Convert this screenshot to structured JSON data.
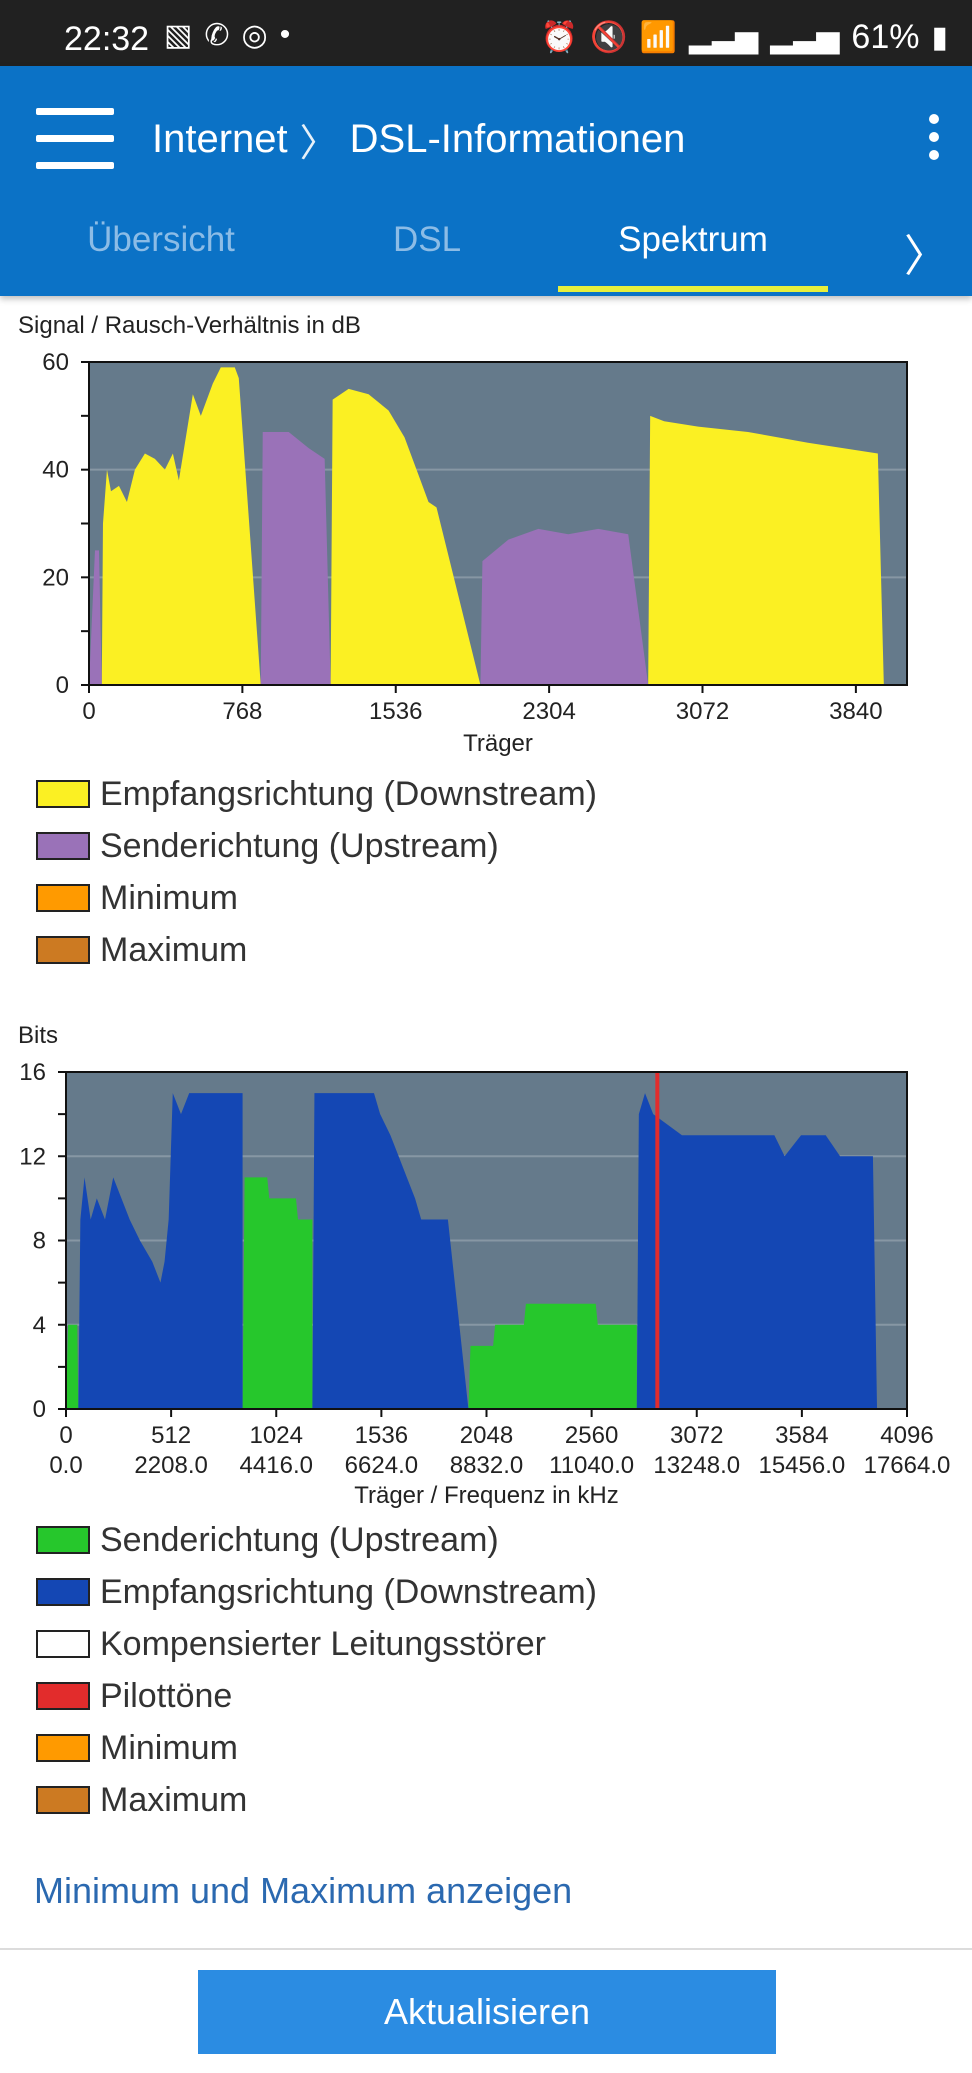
{
  "status_bar": {
    "time": "22:32",
    "battery": "61%",
    "left_icons": [
      "gallery-icon",
      "whatsapp-icon",
      "instagram-icon",
      "dot-icon"
    ],
    "right_icons": [
      "alarm-icon",
      "mute-icon",
      "wifi-icon",
      "signal-icon",
      "signal-icon",
      "battery-icon"
    ]
  },
  "app_bar": {
    "breadcrumb_parent": "Internet",
    "breadcrumb_current": "DSL-Informationen"
  },
  "tabs": [
    {
      "label": "Übersicht"
    },
    {
      "label": "DSL"
    },
    {
      "label": "Spektrum"
    }
  ],
  "active_tab": "Spektrum",
  "colors": {
    "appbar": "#0b72c6",
    "tab_indicator": "#e8ef3b",
    "plot_bg": "#657a8b",
    "downstream_snr": "#fbf023",
    "upstream_snr": "#9a72b8",
    "upstream_bits": "#26c72c",
    "downstream_bits": "#1447b4",
    "pilot": "#e22c2c",
    "minimum": "#ff9a00",
    "maximum": "#cc7a22"
  },
  "chart_data": [
    {
      "type": "area",
      "title": "Signal / Rausch-Verhältnis in dB",
      "xlabel": "Träger",
      "ylabel": "",
      "xlim": [
        0,
        4096
      ],
      "ylim": [
        0,
        60
      ],
      "x_ticks": [
        "0",
        "768",
        "1536",
        "2304",
        "3072",
        "3840"
      ],
      "y_ticks": [
        "0",
        "20",
        "40",
        "60"
      ],
      "series": [
        {
          "name": "Empfangsrichtung (Downstream)",
          "color": "#fbf023",
          "points": [
            [
              64,
              0
            ],
            [
              70,
              30
            ],
            [
              90,
              40
            ],
            [
              110,
              36
            ],
            [
              150,
              37
            ],
            [
              190,
              34
            ],
            [
              230,
              40
            ],
            [
              280,
              43
            ],
            [
              330,
              42
            ],
            [
              380,
              40
            ],
            [
              420,
              43
            ],
            [
              450,
              38
            ],
            [
              520,
              54
            ],
            [
              560,
              50
            ],
            [
              620,
              56
            ],
            [
              660,
              59
            ],
            [
              700,
              59
            ],
            [
              730,
              59
            ],
            [
              750,
              57
            ],
            [
              860,
              0
            ],
            [
              1210,
              0
            ],
            [
              1220,
              53
            ],
            [
              1300,
              55
            ],
            [
              1400,
              54
            ],
            [
              1500,
              51
            ],
            [
              1580,
              46
            ],
            [
              1660,
              38
            ],
            [
              1700,
              34
            ],
            [
              1740,
              33
            ],
            [
              1960,
              0
            ],
            [
              2800,
              0
            ],
            [
              2810,
              50
            ],
            [
              2880,
              49
            ],
            [
              3050,
              48
            ],
            [
              3300,
              47
            ],
            [
              3600,
              45
            ],
            [
              3950,
              43
            ],
            [
              3980,
              0
            ]
          ]
        },
        {
          "name": "Senderichtung (Upstream)",
          "color": "#9a72b8",
          "points": [
            [
              0,
              0
            ],
            [
              30,
              25
            ],
            [
              50,
              25
            ],
            [
              64,
              0
            ],
            [
              860,
              0
            ],
            [
              870,
              47
            ],
            [
              1000,
              47
            ],
            [
              1100,
              44
            ],
            [
              1180,
              42
            ],
            [
              1210,
              0
            ],
            [
              1960,
              0
            ],
            [
              1970,
              23
            ],
            [
              2100,
              27
            ],
            [
              2250,
              29
            ],
            [
              2400,
              28
            ],
            [
              2550,
              29
            ],
            [
              2700,
              28
            ],
            [
              2800,
              0
            ]
          ]
        }
      ],
      "legend": [
        {
          "label": "Empfangsrichtung (Downstream)",
          "color": "#fbf023"
        },
        {
          "label": "Senderichtung (Upstream)",
          "color": "#9a72b8"
        },
        {
          "label": "Minimum",
          "color": "#ff9a00"
        },
        {
          "label": "Maximum",
          "color": "#cc7a22"
        }
      ]
    },
    {
      "type": "area",
      "title": "Bits",
      "xlabel": "Träger / Frequenz in kHz",
      "ylabel": "",
      "xlim": [
        0,
        4096
      ],
      "ylim": [
        0,
        16
      ],
      "x_ticks": [
        {
          "top": "0",
          "bottom": "0.0"
        },
        {
          "top": "512",
          "bottom": "2208.0"
        },
        {
          "top": "1024",
          "bottom": "4416.0"
        },
        {
          "top": "1536",
          "bottom": "6624.0"
        },
        {
          "top": "2048",
          "bottom": "8832.0"
        },
        {
          "top": "2560",
          "bottom": "11040.0"
        },
        {
          "top": "3072",
          "bottom": "13248.0"
        },
        {
          "top": "3584",
          "bottom": "15456.0"
        },
        {
          "top": "4096",
          "bottom": "17664.0"
        }
      ],
      "y_ticks": [
        "0",
        "4",
        "8",
        "12",
        "16"
      ],
      "series": [
        {
          "name": "Senderichtung (Upstream)",
          "color": "#26c72c",
          "points": [
            [
              0,
              0
            ],
            [
              10,
              4
            ],
            [
              55,
              4
            ],
            [
              60,
              0
            ],
            [
              860,
              0
            ],
            [
              870,
              11
            ],
            [
              980,
              11
            ],
            [
              990,
              10
            ],
            [
              1120,
              10
            ],
            [
              1130,
              9
            ],
            [
              1200,
              9
            ],
            [
              1200,
              0
            ],
            [
              1960,
              0
            ],
            [
              1970,
              3
            ],
            [
              2080,
              3
            ],
            [
              2090,
              4
            ],
            [
              2230,
              4
            ],
            [
              2240,
              5
            ],
            [
              2580,
              5
            ],
            [
              2590,
              4
            ],
            [
              2780,
              4
            ],
            [
              2780,
              0
            ]
          ]
        },
        {
          "name": "Empfangsrichtung (Downstream)",
          "color": "#1447b4",
          "points": [
            [
              60,
              0
            ],
            [
              70,
              9
            ],
            [
              90,
              11
            ],
            [
              120,
              9
            ],
            [
              150,
              10
            ],
            [
              190,
              9
            ],
            [
              230,
              11
            ],
            [
              270,
              10
            ],
            [
              310,
              9
            ],
            [
              360,
              8
            ],
            [
              420,
              7
            ],
            [
              460,
              6
            ],
            [
              480,
              7
            ],
            [
              500,
              9
            ],
            [
              520,
              15
            ],
            [
              560,
              14
            ],
            [
              600,
              15
            ],
            [
              660,
              15
            ],
            [
              700,
              15
            ],
            [
              720,
              15
            ],
            [
              730,
              15
            ],
            [
              740,
              15
            ],
            [
              860,
              15
            ],
            [
              860,
              0
            ],
            [
              1200,
              0
            ],
            [
              1210,
              15
            ],
            [
              1300,
              15
            ],
            [
              1400,
              15
            ],
            [
              1450,
              15
            ],
            [
              1500,
              15
            ],
            [
              1530,
              14
            ],
            [
              1580,
              13
            ],
            [
              1620,
              12
            ],
            [
              1660,
              11
            ],
            [
              1700,
              10
            ],
            [
              1730,
              9
            ],
            [
              1800,
              9
            ],
            [
              1840,
              9
            ],
            [
              1860,
              9
            ],
            [
              1960,
              0
            ],
            [
              2780,
              0
            ],
            [
              2790,
              14
            ],
            [
              2820,
              15
            ],
            [
              2860,
              14
            ],
            [
              3000,
              13
            ],
            [
              3300,
              13
            ],
            [
              3450,
              13
            ],
            [
              3500,
              12
            ],
            [
              3580,
              13
            ],
            [
              3700,
              13
            ],
            [
              3770,
              12
            ],
            [
              3930,
              12
            ],
            [
              3950,
              0
            ]
          ]
        },
        {
          "name": "Pilottöne",
          "color": "#e22c2c",
          "x": [
            2880
          ]
        }
      ],
      "legend": [
        {
          "label": "Senderichtung (Upstream)",
          "color": "#26c72c"
        },
        {
          "label": "Empfangsrichtung (Downstream)",
          "color": "#1447b4"
        },
        {
          "label": "Kompensierter Leitungsstörer",
          "color": "#ffffff"
        },
        {
          "label": "Pilottöne",
          "color": "#e22c2c"
        },
        {
          "label": "Minimum",
          "color": "#ff9a00"
        },
        {
          "label": "Maximum",
          "color": "#cc7a22"
        }
      ]
    }
  ],
  "link_minmax": "Minimum und Maximum anzeigen",
  "button_refresh": "Aktualisieren"
}
